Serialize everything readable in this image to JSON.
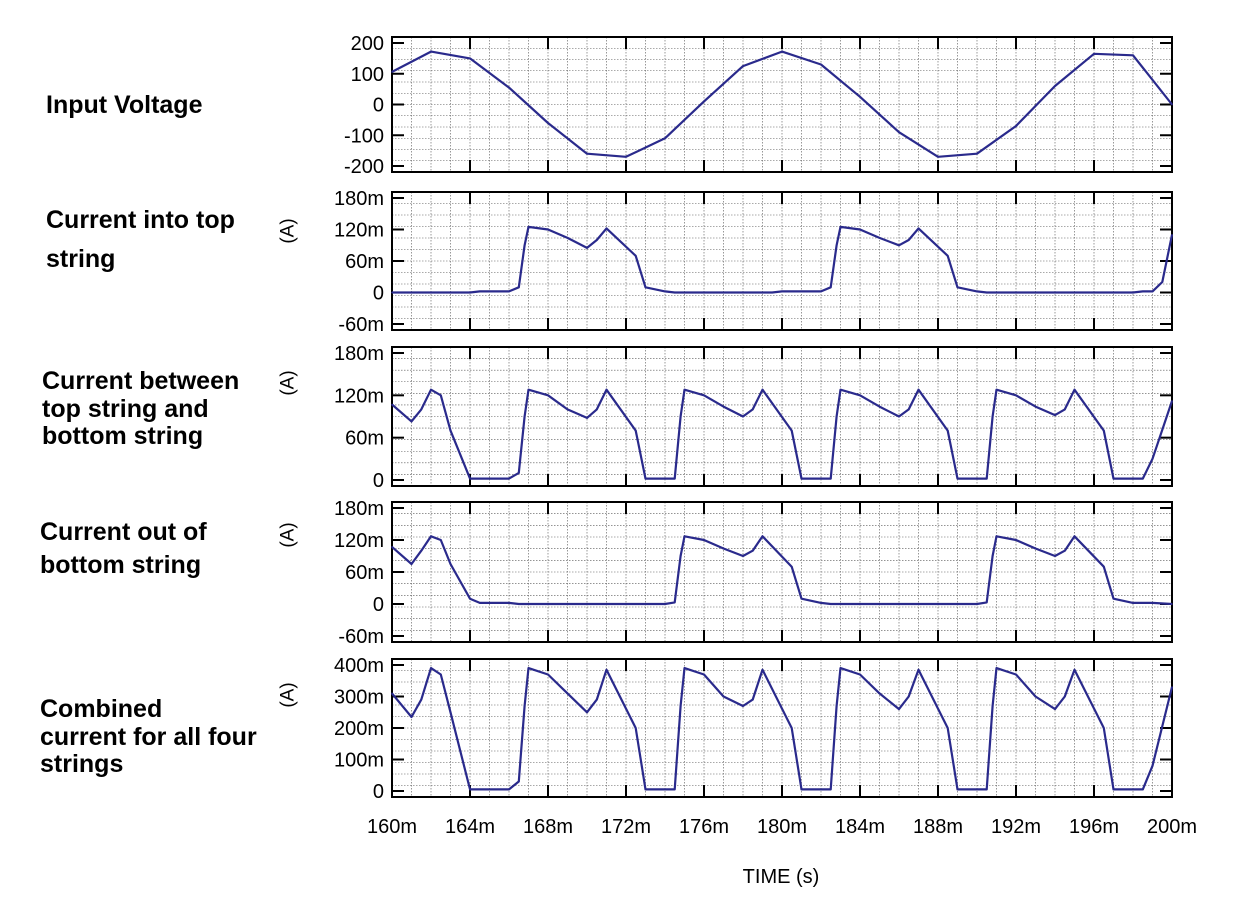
{
  "colors": {
    "trace": "#2a2a8c",
    "frame": "#000000",
    "grid": "#555555"
  },
  "chart_data": {
    "type": "line",
    "x_unit": "s",
    "xlabel": "TIME  (s)",
    "x_range": [
      0.16,
      0.2
    ],
    "x_ticks": [
      0.16,
      0.164,
      0.168,
      0.172,
      0.176,
      0.18,
      0.184,
      0.188,
      0.192,
      0.196,
      0.2
    ],
    "x_tick_labels": [
      "160m",
      "164m",
      "168m",
      "172m",
      "176m",
      "180m",
      "184m",
      "188m",
      "192m",
      "196m",
      "200m"
    ],
    "grid": true,
    "panels": [
      {
        "title": "Input Voltage",
        "ylabel": "",
        "ylim": [
          -200,
          200
        ],
        "y_ticks": [
          200,
          100,
          0,
          -100,
          -200
        ],
        "y_tick_labels": [
          "200",
          "100",
          "0",
          "-100",
          "-200"
        ],
        "series": [
          {
            "x": [
              0.16,
              0.162,
              0.164,
              0.166,
              0.168,
              0.17,
              0.172,
              0.174,
              0.176,
              0.178,
              0.18,
              0.182,
              0.184,
              0.186,
              0.188,
              0.19,
              0.192,
              0.194,
              0.196,
              0.198,
              0.2
            ],
            "values": [
              106,
              172,
              150,
              55,
              -60,
              -160,
              -170,
              -110,
              10,
              125,
              172,
              130,
              25,
              -90,
              -170,
              -160,
              -70,
              60,
              165,
              160,
              0
            ]
          }
        ]
      },
      {
        "title": "Current into top\n string",
        "ylabel": "(A)",
        "ylim": [
          -0.06,
          0.18
        ],
        "y_ticks": [
          0.18,
          0.12,
          0.06,
          0,
          -0.06
        ],
        "y_tick_labels": [
          "180m",
          "120m",
          "60m",
          "0",
          "-60m"
        ],
        "series": [
          {
            "x": [
              0.16,
              0.164,
              0.1645,
              0.166,
              0.1665,
              0.1668,
              0.167,
              0.168,
              0.169,
              0.17,
              0.1705,
              0.171,
              0.1725,
              0.173,
              0.174,
              0.1745,
              0.1795,
              0.18,
              0.182,
              0.1825,
              0.1828,
              0.183,
              0.184,
              0.185,
              0.186,
              0.1865,
              0.187,
              0.1885,
              0.189,
              0.19,
              0.1905,
              0.198,
              0.1985,
              0.199,
              0.1995,
              0.2
            ],
            "values": [
              0,
              0,
              0.002,
              0.002,
              0.01,
              0.09,
              0.125,
              0.12,
              0.104,
              0.085,
              0.1,
              0.122,
              0.07,
              0.01,
              0.002,
              0,
              0,
              0.002,
              0.002,
              0.01,
              0.09,
              0.125,
              0.12,
              0.104,
              0.09,
              0.1,
              0.122,
              0.07,
              0.01,
              0.002,
              0,
              0,
              0.002,
              0.002,
              0.02,
              0.11
            ]
          }
        ]
      },
      {
        "title": "Current between\ntop string and\n bottom string",
        "ylabel": "(A)",
        "ylim": [
          0,
          0.18
        ],
        "y_ticks": [
          0.18,
          0.12,
          0.06,
          0
        ],
        "y_tick_labels": [
          "180m",
          "120m",
          "60m",
          "0"
        ],
        "series": [
          {
            "x": [
              0.16,
              0.161,
              0.1615,
              0.162,
              0.1625,
              0.163,
              0.164,
              0.1645,
              0.166,
              0.1665,
              0.1668,
              0.167,
              0.168,
              0.169,
              0.17,
              0.1705,
              0.171,
              0.1725,
              0.173,
              0.1745,
              0.1748,
              0.175,
              0.176,
              0.177,
              0.178,
              0.1785,
              0.179,
              0.1805,
              0.181,
              0.1825,
              0.1828,
              0.183,
              0.184,
              0.185,
              0.186,
              0.1865,
              0.187,
              0.1885,
              0.189,
              0.1905,
              0.1908,
              0.191,
              0.192,
              0.193,
              0.194,
              0.1945,
              0.195,
              0.1965,
              0.197,
              0.1985,
              0.199,
              0.2
            ],
            "values": [
              0.107,
              0.083,
              0.1,
              0.128,
              0.12,
              0.07,
              0.002,
              0.002,
              0.002,
              0.01,
              0.09,
              0.128,
              0.12,
              0.1,
              0.088,
              0.1,
              0.128,
              0.07,
              0.002,
              0.002,
              0.09,
              0.128,
              0.12,
              0.104,
              0.09,
              0.1,
              0.128,
              0.07,
              0.002,
              0.002,
              0.09,
              0.128,
              0.12,
              0.104,
              0.09,
              0.1,
              0.128,
              0.07,
              0.002,
              0.002,
              0.09,
              0.128,
              0.12,
              0.104,
              0.092,
              0.1,
              0.128,
              0.07,
              0.002,
              0.002,
              0.03,
              0.112
            ]
          }
        ]
      },
      {
        "title": "Current out of\n bottom string",
        "ylabel": "(A)",
        "ylim": [
          -0.06,
          0.18
        ],
        "y_ticks": [
          0.18,
          0.12,
          0.06,
          0,
          -0.06
        ],
        "y_tick_labels": [
          "180m",
          "120m",
          "60m",
          "0",
          "-60m"
        ],
        "series": [
          {
            "x": [
              0.16,
              0.161,
              0.1615,
              0.162,
              0.1625,
              0.163,
              0.164,
              0.1645,
              0.166,
              0.1665,
              0.174,
              0.1745,
              0.1748,
              0.175,
              0.176,
              0.177,
              0.178,
              0.1785,
              0.179,
              0.1805,
              0.181,
              0.182,
              0.1825,
              0.19,
              0.1905,
              0.1908,
              0.191,
              0.192,
              0.193,
              0.194,
              0.1945,
              0.195,
              0.1965,
              0.197,
              0.198,
              0.199,
              0.2
            ],
            "values": [
              0.107,
              0.075,
              0.1,
              0.127,
              0.12,
              0.075,
              0.01,
              0.002,
              0.002,
              0,
              0,
              0.003,
              0.09,
              0.127,
              0.12,
              0.104,
              0.09,
              0.1,
              0.127,
              0.07,
              0.01,
              0.002,
              0,
              0,
              0.003,
              0.09,
              0.127,
              0.12,
              0.104,
              0.09,
              0.1,
              0.127,
              0.07,
              0.01,
              0.002,
              0.002,
              0
            ]
          }
        ]
      },
      {
        "title": "Combined\ncurrent for all four\nstrings",
        "ylabel": "(A)",
        "ylim": [
          0,
          0.4
        ],
        "y_ticks": [
          0.4,
          0.3,
          0.2,
          0.1,
          0
        ],
        "y_tick_labels": [
          "400m",
          "300m",
          "200m",
          "100m",
          "0"
        ],
        "series": [
          {
            "x": [
              0.16,
              0.161,
              0.1615,
              0.162,
              0.1625,
              0.163,
              0.164,
              0.1645,
              0.166,
              0.1665,
              0.1668,
              0.167,
              0.168,
              0.169,
              0.17,
              0.1705,
              0.171,
              0.1725,
              0.173,
              0.1745,
              0.1748,
              0.175,
              0.176,
              0.177,
              0.178,
              0.1785,
              0.179,
              0.1805,
              0.181,
              0.1825,
              0.1828,
              0.183,
              0.184,
              0.185,
              0.186,
              0.1865,
              0.187,
              0.1885,
              0.189,
              0.1905,
              0.1908,
              0.191,
              0.192,
              0.193,
              0.194,
              0.1945,
              0.195,
              0.1965,
              0.197,
              0.1985,
              0.199,
              0.2
            ],
            "values": [
              0.31,
              0.235,
              0.29,
              0.39,
              0.37,
              0.25,
              0.005,
              0.005,
              0.005,
              0.03,
              0.27,
              0.39,
              0.37,
              0.31,
              0.25,
              0.29,
              0.385,
              0.2,
              0.005,
              0.005,
              0.27,
              0.39,
              0.37,
              0.3,
              0.27,
              0.29,
              0.385,
              0.2,
              0.005,
              0.005,
              0.27,
              0.39,
              0.37,
              0.31,
              0.26,
              0.3,
              0.385,
              0.2,
              0.005,
              0.005,
              0.27,
              0.39,
              0.37,
              0.3,
              0.26,
              0.3,
              0.385,
              0.2,
              0.005,
              0.005,
              0.08,
              0.33
            ]
          }
        ]
      }
    ]
  }
}
